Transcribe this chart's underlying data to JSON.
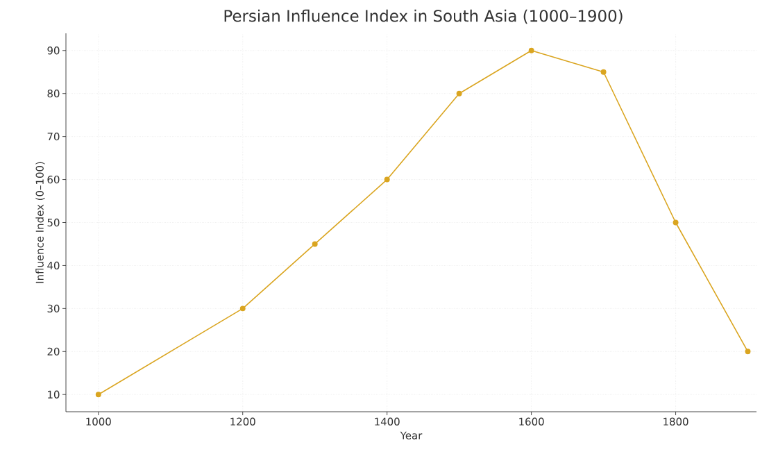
{
  "chart_data": {
    "type": "line",
    "title": "Persian Influence Index in South Asia (1000–1900)",
    "xlabel": "Year",
    "ylabel": "Influence Index (0–100)",
    "x": [
      1000,
      1200,
      1300,
      1400,
      1500,
      1600,
      1700,
      1800,
      1900
    ],
    "series": [
      {
        "color": "#daa520",
        "values": [
          10,
          30,
          45,
          60,
          80,
          90,
          85,
          50,
          20
        ]
      }
    ],
    "xlim": [
      955,
      1912
    ],
    "ylim": [
      6,
      94
    ],
    "xticks": [
      1000,
      1200,
      1400,
      1600,
      1800
    ],
    "yticks": [
      10,
      20,
      30,
      40,
      50,
      60,
      70,
      80,
      90
    ],
    "grid": true,
    "marker": "circle",
    "line_style": "solid"
  }
}
